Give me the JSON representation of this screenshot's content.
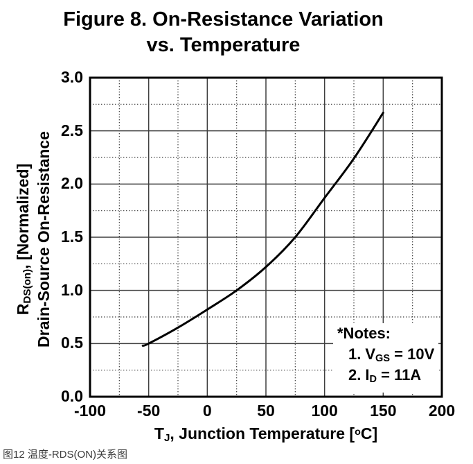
{
  "title": {
    "line1": "Figure 8. On-Resistance Variation",
    "line2": "vs. Temperature"
  },
  "chart_data": {
    "type": "line",
    "title": "Figure 8. On-Resistance Variation vs. Temperature",
    "xlabel": "TJ, Junction Temperature [°C]",
    "ylabel": "RDS(on), [Normalized] Drain-Source On-Resistance",
    "xlim": [
      -100,
      200
    ],
    "ylim": [
      0.0,
      3.0
    ],
    "x_ticks": [
      -100,
      -50,
      0,
      50,
      100,
      150,
      200
    ],
    "x_tick_labels": [
      "-100",
      "-50",
      "0",
      "50",
      "100",
      "150",
      "200"
    ],
    "y_ticks": [
      0.0,
      0.5,
      1.0,
      1.5,
      2.0,
      2.5,
      3.0
    ],
    "y_tick_labels": [
      "0.0",
      "0.5",
      "1.0",
      "1.5",
      "2.0",
      "2.5",
      "3.0"
    ],
    "x_minor_ticks": [
      -75,
      -25,
      25,
      75,
      125,
      175
    ],
    "y_minor_ticks": [
      0.25,
      0.75,
      1.25,
      1.75,
      2.25,
      2.75
    ],
    "grid": {
      "major": "solid",
      "minor": "dotted"
    },
    "legend": "none",
    "series": [
      {
        "name": "normalized-rds-on-vs-temperature",
        "x": [
          -55,
          -50,
          -25,
          0,
          25,
          50,
          75,
          100,
          125,
          150
        ],
        "y": [
          0.48,
          0.5,
          0.65,
          0.82,
          1.0,
          1.22,
          1.5,
          1.87,
          2.24,
          2.67
        ]
      }
    ],
    "annotations": [
      "*Notes:",
      "1. VGS = 10V",
      "2. ID = 11A"
    ]
  },
  "y_axis": {
    "title_pre": "R",
    "title_sub": "DS(on)",
    "title_post": ", [Normalized]",
    "title_line2": "Drain-Source On-Resistance"
  },
  "x_axis": {
    "title_pre": "T",
    "title_sub": "J",
    "title_mid": ", Junction Temperature ",
    "bracket_open": "[",
    "deg_sup": "o",
    "unit": "C",
    "bracket_close": "]"
  },
  "notes": {
    "title": "*Notes:",
    "items": [
      {
        "num": "1.",
        "sym": "V",
        "sub": "GS",
        "rest": " = 10V"
      },
      {
        "num": "2.",
        "sym": "I",
        "sub": "D",
        "rest": " = 11A"
      }
    ]
  },
  "caption": {
    "text": "图12 温度-RDS(ON)关系图"
  },
  "colors": {
    "background": "#ffffff",
    "axis_border": "#000000",
    "grid_major": "#3f3f3f",
    "grid_minor": "#3c3c3c",
    "curve": "#000000",
    "caption": "#3b3b3b"
  }
}
